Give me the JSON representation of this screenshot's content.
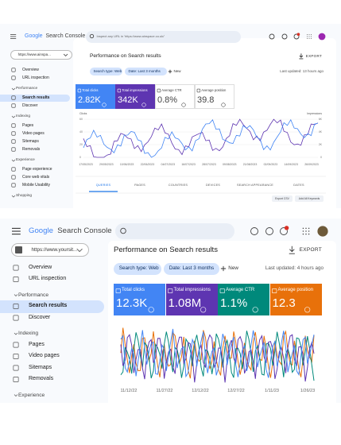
{
  "screens": [
    {
      "brand": "Google",
      "product": "Search Console",
      "search": "Inspect any URL in 'https://www.ainspace.co.uk/'",
      "property": "https://www.ainspa...",
      "nav": [
        "Overview",
        "URL inspection"
      ],
      "sections": [
        {
          "title": "Performance",
          "items": [
            "Search results",
            "Discover"
          ]
        },
        {
          "title": "Indexing",
          "items": [
            "Pages",
            "Video pages",
            "Sitemaps",
            "Removals"
          ]
        },
        {
          "title": "Experience",
          "items": [
            "Page experience",
            "Core web vitals",
            "Mobile Usability"
          ]
        },
        {
          "title": "Shopping",
          "items": []
        }
      ],
      "page_title": "Performance on Search results",
      "export": "EXPORT",
      "filters": [
        "Search type: Web",
        "Date: Last 3 months"
      ],
      "new": "New",
      "updated": "Last updated: 13 hours ago",
      "cards": [
        {
          "label": "Total clicks",
          "value": "2.82K"
        },
        {
          "label": "Total impressions",
          "value": "342K"
        },
        {
          "label": "Average CTR",
          "value": "0.8%"
        },
        {
          "label": "Average position",
          "value": "39.8"
        }
      ],
      "chart": {
        "left_axis": "Clicks",
        "right_axis": "Impressions",
        "left_ticks": [
          "60",
          "40",
          "20",
          "0"
        ],
        "right_ticks": [
          "6K",
          "4K",
          "2K",
          "0"
        ],
        "dates": [
          "17/05/2023",
          "29/05/2023",
          "10/06/2023",
          "22/06/2023",
          "04/07/2023",
          "16/07/2023",
          "28/07/2023",
          "09/08/2023",
          "21/08/2023",
          "02/09/2023",
          "14/09/2023",
          "26/09/2023"
        ]
      },
      "tabs": [
        "QUERIES",
        "PAGES",
        "COUNTRIES",
        "DEVICES",
        "SEARCH APPEARANCE",
        "DATES"
      ],
      "buttons": [
        "Export CSV",
        "Add All Keywords"
      ]
    },
    {
      "brand": "Google",
      "product": "Search Console",
      "property": "https://www.yoursit...",
      "nav": [
        "Overview",
        "URL inspection"
      ],
      "sections": [
        {
          "title": "Performance",
          "items": [
            "Search results",
            "Discover"
          ]
        },
        {
          "title": "Indexing",
          "items": [
            "Pages",
            "Video pages",
            "Sitemaps",
            "Removals"
          ]
        },
        {
          "title": "Experience",
          "items": []
        }
      ],
      "page_title": "Performance on Search results",
      "export": "EXPORT",
      "filters": [
        "Search type: Web",
        "Date: Last 3 months"
      ],
      "new": "New",
      "updated": "Last updated: 4 hours ago",
      "cards": [
        {
          "label": "Total clicks",
          "value": "12.3K"
        },
        {
          "label": "Total impressions",
          "value": "1.08M"
        },
        {
          "label": "Average CTR",
          "value": "1.1%"
        },
        {
          "label": "Average position",
          "value": "12.3"
        }
      ],
      "chart": {
        "dates": [
          "11/12/22",
          "11/27/22",
          "12/12/22",
          "12/27/22",
          "1/11/23",
          "1/26/23"
        ]
      }
    }
  ]
}
